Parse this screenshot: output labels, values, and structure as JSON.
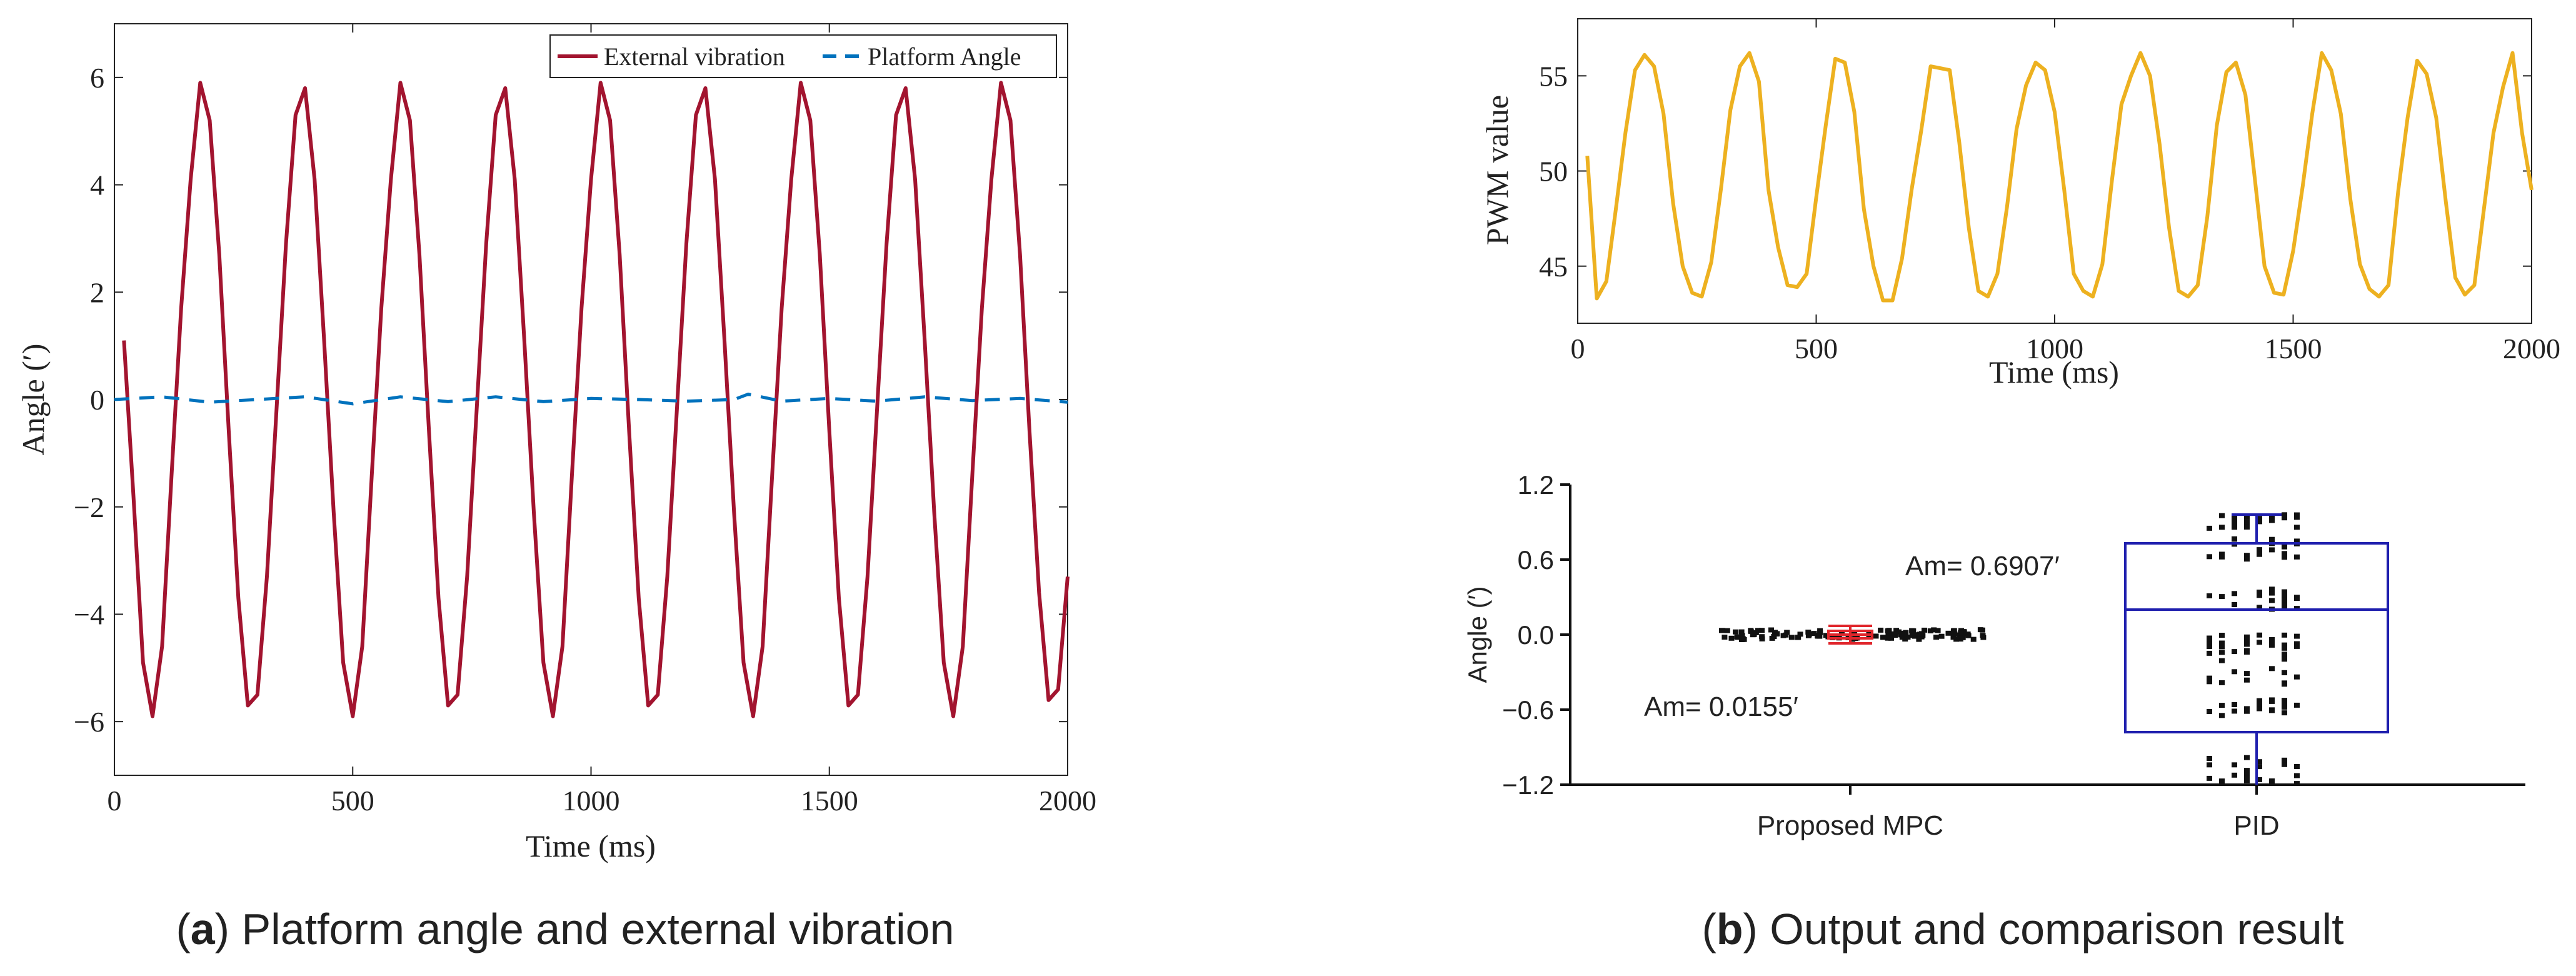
{
  "figure": {
    "caption_a_letter": "a",
    "caption_a_text": ") Platform angle and external vibration",
    "caption_b_letter": "b",
    "caption_b_text": ") Output and comparison result",
    "open_paren": "("
  },
  "chart_data": [
    {
      "id": "a",
      "type": "line",
      "title": "",
      "xlabel": "Time (ms)",
      "ylabel": "Angle (′)",
      "xlim": [
        0,
        2000
      ],
      "ylim": [
        -7,
        7
      ],
      "xticks": [
        0,
        500,
        1000,
        1500,
        2000
      ],
      "xtick_labels": [
        "0",
        "500",
        "1000",
        "1500",
        "2000"
      ],
      "yticks": [
        -6,
        -4,
        -2,
        0,
        2,
        4,
        6
      ],
      "ytick_labels": [
        "−6",
        "−4",
        "−2",
        "0",
        "2",
        "4",
        "6"
      ],
      "legend": [
        "External vibration",
        "Platform Angle"
      ],
      "series": [
        {
          "name": "External vibration",
          "color": "#A2142F",
          "style": "solid",
          "x": [
            20,
            40,
            60,
            80,
            100,
            120,
            140,
            160,
            180,
            200,
            220,
            240,
            260,
            280,
            300,
            320,
            340,
            360,
            380,
            400,
            420,
            440,
            460,
            480,
            500,
            520,
            540,
            560,
            580,
            600,
            620,
            640,
            660,
            680,
            700,
            720,
            740,
            760,
            780,
            800,
            820,
            840,
            860,
            880,
            900,
            920,
            940,
            960,
            980,
            1000,
            1020,
            1040,
            1060,
            1080,
            1100,
            1120,
            1140,
            1160,
            1180,
            1200,
            1220,
            1240,
            1260,
            1280,
            1300,
            1320,
            1340,
            1360,
            1380,
            1400,
            1420,
            1440,
            1460,
            1480,
            1500,
            1520,
            1540,
            1560,
            1580,
            1600,
            1620,
            1640,
            1660,
            1680,
            1700,
            1720,
            1740,
            1760,
            1780,
            1800,
            1820,
            1840,
            1860,
            1880,
            1900,
            1920,
            1940,
            1960,
            1980,
            2000
          ],
          "y": [
            1.1,
            -1.8,
            -4.9,
            -5.9,
            -4.6,
            -1.4,
            1.7,
            4.1,
            5.9,
            5.2,
            2.7,
            -0.6,
            -3.7,
            -5.7,
            -5.5,
            -3.3,
            -0.2,
            2.9,
            5.3,
            5.8,
            4.1,
            1.1,
            -2.1,
            -4.9,
            -5.9,
            -4.6,
            -1.4,
            1.7,
            4.1,
            5.9,
            5.2,
            2.7,
            -0.6,
            -3.7,
            -5.7,
            -5.5,
            -3.3,
            -0.2,
            2.9,
            5.3,
            5.8,
            4.1,
            1.1,
            -2.1,
            -4.9,
            -5.9,
            -4.6,
            -1.4,
            1.7,
            4.1,
            5.9,
            5.2,
            2.7,
            -0.6,
            -3.7,
            -5.7,
            -5.5,
            -3.3,
            -0.2,
            2.9,
            5.3,
            5.8,
            4.1,
            1.1,
            -2.1,
            -4.9,
            -5.9,
            -4.6,
            -1.4,
            1.7,
            4.1,
            5.9,
            5.2,
            2.7,
            -0.6,
            -3.7,
            -5.7,
            -5.5,
            -3.3,
            -0.2,
            2.9,
            5.3,
            5.8,
            4.1,
            1.1,
            -2.1,
            -4.9,
            -5.9,
            -4.6,
            -1.4,
            1.7,
            4.1,
            5.9,
            5.2,
            2.7,
            -0.6,
            -3.6,
            -5.6,
            -5.4,
            -3.3
          ]
        },
        {
          "name": "Platform Angle",
          "color": "#0072BD",
          "style": "dashed",
          "x": [
            0,
            100,
            200,
            300,
            400,
            500,
            600,
            700,
            800,
            900,
            1000,
            1100,
            1200,
            1300,
            1330,
            1400,
            1500,
            1600,
            1700,
            1800,
            1900,
            2000
          ],
          "y": [
            0.0,
            0.05,
            -0.05,
            0.0,
            0.05,
            -0.08,
            0.05,
            -0.04,
            0.05,
            -0.04,
            0.02,
            0.0,
            -0.03,
            0.0,
            0.1,
            -0.03,
            0.02,
            -0.03,
            0.05,
            -0.02,
            0.02,
            -0.05
          ]
        }
      ]
    },
    {
      "id": "b-top",
      "type": "line",
      "title": "",
      "xlabel": "Time (ms)",
      "ylabel": "PWM value",
      "xlim": [
        0,
        2000
      ],
      "ylim": [
        42,
        58
      ],
      "xticks": [
        0,
        500,
        1000,
        1500,
        2000
      ],
      "xtick_labels": [
        "0",
        "500",
        "1000",
        "1500",
        "2000"
      ],
      "yticks": [
        45,
        50,
        55
      ],
      "ytick_labels": [
        "45",
        "50",
        "55"
      ],
      "series": [
        {
          "name": "PWM",
          "color": "#EDB120",
          "style": "solid",
          "x": [
            20,
            40,
            60,
            80,
            100,
            120,
            140,
            160,
            180,
            200,
            220,
            240,
            260,
            280,
            300,
            320,
            340,
            360,
            380,
            400,
            420,
            440,
            460,
            480,
            500,
            520,
            540,
            560,
            580,
            600,
            620,
            640,
            660,
            680,
            700,
            720,
            740,
            760,
            780,
            800,
            820,
            840,
            860,
            880,
            900,
            920,
            940,
            960,
            980,
            1000,
            1020,
            1040,
            1060,
            1080,
            1100,
            1120,
            1140,
            1160,
            1180,
            1200,
            1220,
            1240,
            1260,
            1280,
            1300,
            1320,
            1340,
            1360,
            1380,
            1400,
            1420,
            1440,
            1460,
            1480,
            1500,
            1520,
            1540,
            1560,
            1580,
            1600,
            1620,
            1640,
            1660,
            1680,
            1700,
            1720,
            1740,
            1760,
            1780,
            1800,
            1820,
            1840,
            1860,
            1880,
            1900,
            1920,
            1940,
            1960,
            1980,
            2000
          ],
          "y": [
            50.8,
            43.3,
            44.2,
            48.0,
            52.0,
            55.3,
            56.1,
            55.5,
            53.0,
            48.3,
            45.0,
            43.6,
            43.4,
            45.2,
            49.0,
            53.2,
            55.5,
            56.2,
            54.7,
            49.0,
            46.0,
            44.0,
            43.9,
            44.6,
            48.6,
            52.4,
            55.9,
            55.7,
            53.1,
            48.0,
            45.0,
            43.2,
            43.2,
            45.4,
            49.0,
            52.1,
            55.5,
            55.4,
            55.3,
            51.5,
            47.0,
            43.7,
            43.4,
            44.6,
            48.1,
            52.2,
            54.5,
            55.7,
            55.3,
            53.1,
            49.0,
            44.6,
            43.7,
            43.4,
            45.1,
            49.5,
            53.5,
            55.0,
            56.2,
            55.0,
            51.4,
            47.0,
            43.7,
            43.4,
            44.0,
            47.6,
            52.4,
            55.2,
            55.7,
            54.0,
            49.5,
            45.0,
            43.6,
            43.5,
            45.8,
            49.2,
            53.0,
            56.2,
            55.3,
            53.0,
            48.5,
            45.1,
            43.8,
            43.4,
            44.0,
            48.9,
            52.8,
            55.8,
            55.1,
            52.8,
            48.4,
            44.4,
            43.5,
            44.0,
            48.0,
            52.0,
            54.4,
            56.2,
            52.0,
            49.0
          ]
        }
      ]
    },
    {
      "id": "b-bottom",
      "type": "box",
      "title": "",
      "xlabel": "",
      "ylabel": "Angle (′)",
      "ylim": [
        -1.2,
        1.2
      ],
      "yticks": [
        -1.2,
        -0.6,
        0.0,
        0.6,
        1.2
      ],
      "ytick_labels": [
        "−1.2",
        "−0.6",
        "0.0",
        "0.6",
        "1.2"
      ],
      "categories": [
        "Proposed MPC",
        "PID"
      ],
      "annotations": [
        "Am=  0.0155′",
        "Am= 0.6907′"
      ],
      "boxes": [
        {
          "name": "Proposed MPC",
          "color": "#E0252B",
          "q1": -0.03,
          "median": 0.0,
          "q3": 0.03,
          "whisker_low": -0.07,
          "whisker_high": 0.07
        },
        {
          "name": "PID",
          "color": "#1F1FAE",
          "q1": -0.78,
          "median": 0.2,
          "q3": 0.73,
          "whisker_low": -1.2,
          "whisker_high": 0.96
        }
      ]
    }
  ]
}
